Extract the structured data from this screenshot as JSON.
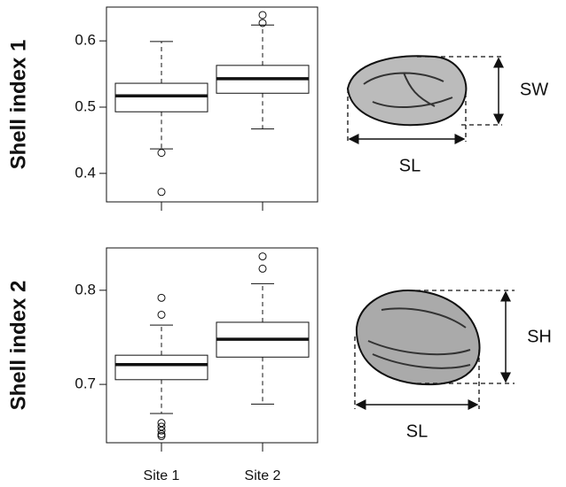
{
  "chart_data": [
    {
      "type": "boxplot",
      "y_label": "Shell index 1",
      "categories": [
        null,
        null
      ],
      "boxes": [
        {
          "whislo": 0.437,
          "q1": 0.493,
          "med": 0.517,
          "q3": 0.536,
          "whishi": 0.599,
          "fliers": [
            0.431,
            0.372
          ]
        },
        {
          "whislo": 0.467,
          "q1": 0.521,
          "med": 0.543,
          "q3": 0.563,
          "whishi": 0.624,
          "fliers": [
            0.639,
            0.627
          ]
        }
      ],
      "ylim": [
        0.357,
        0.651
      ],
      "yticks": [
        0.4,
        0.5,
        0.6
      ],
      "annotations": [
        "SW",
        "SL"
      ]
    },
    {
      "type": "boxplot",
      "y_label": "Shell index 2",
      "categories": [
        "Site 1",
        "Site 2"
      ],
      "boxes": [
        {
          "whislo": 0.669,
          "q1": 0.705,
          "med": 0.721,
          "q3": 0.731,
          "whishi": 0.763,
          "fliers": [
            0.792,
            0.774,
            0.659,
            0.655,
            0.651,
            0.647,
            0.645
          ]
        },
        {
          "whislo": 0.679,
          "q1": 0.729,
          "med": 0.748,
          "q3": 0.766,
          "whishi": 0.807,
          "fliers": [
            0.836,
            0.823
          ]
        }
      ],
      "ylim": [
        0.638,
        0.845
      ],
      "yticks": [
        0.7,
        0.8
      ],
      "annotations": [
        "SH",
        "SL"
      ]
    }
  ]
}
